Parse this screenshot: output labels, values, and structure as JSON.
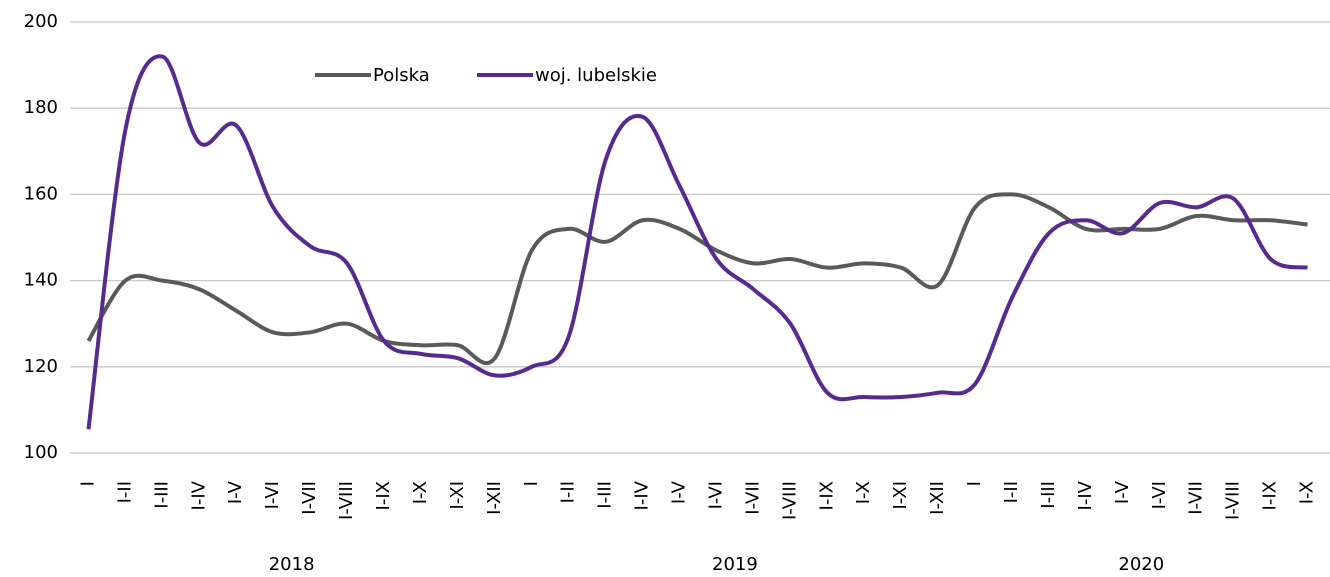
{
  "chart_data": {
    "type": "line",
    "groups": [
      {
        "label": "2018",
        "categories": [
          "I",
          "I-II",
          "I-III",
          "I-IV",
          "I-V",
          "I-VI",
          "I-VII",
          "I-VIII",
          "I-IX",
          "I-X",
          "I-XI",
          "I-XII"
        ]
      },
      {
        "label": "2019",
        "categories": [
          "I",
          "I-II",
          "I-III",
          "I-IV",
          "I-V",
          "I-VI",
          "I-VII",
          "I-VIII",
          "I-IX",
          "I-X",
          "I-XI",
          "I-XII"
        ]
      },
      {
        "label": "2020",
        "categories": [
          "I",
          "I-II",
          "I-III",
          "I-IV",
          "I-V",
          "I-VI",
          "I-VII",
          "I-VIII",
          "I-IX",
          "I-X"
        ]
      }
    ],
    "series": [
      {
        "name": "Polska",
        "color": "#5a5a5a",
        "values": [
          126,
          140,
          140,
          138,
          133,
          128,
          128,
          130,
          126,
          125,
          125,
          122,
          147,
          152,
          149,
          154,
          152,
          147,
          144,
          145,
          143,
          144,
          143,
          139,
          157,
          160,
          157,
          152,
          152,
          152,
          155,
          154,
          154,
          153
        ]
      },
      {
        "name": "woj. lubelskie",
        "color": "#562a8e",
        "values": [
          105.5,
          175,
          192,
          172,
          176,
          157,
          148,
          144,
          126,
          123,
          122,
          118,
          120,
          127,
          168,
          178,
          162,
          145,
          138,
          130,
          114,
          113,
          113,
          114,
          116,
          136,
          151,
          154,
          151,
          158,
          157,
          159,
          145,
          143
        ]
      }
    ],
    "ylim": [
      100,
      200
    ],
    "yticks": [
      100,
      120,
      140,
      160,
      180,
      200
    ],
    "grid": true,
    "legend": "top"
  }
}
